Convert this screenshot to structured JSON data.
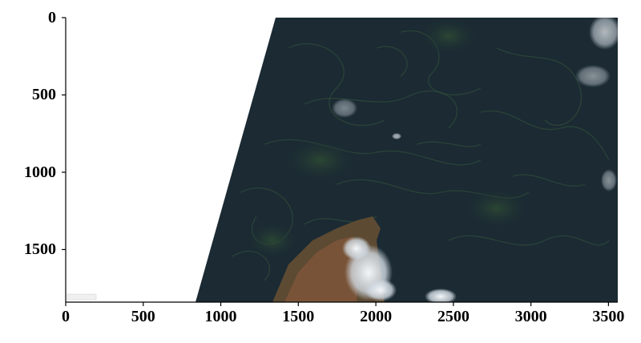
{
  "figure": {
    "type": "satellite-image-axes",
    "description_hidden": "",
    "x_ticks": [
      "0",
      "500",
      "1000",
      "1500",
      "2000",
      "2500",
      "3000",
      "3500"
    ],
    "y_ticks": [
      "0",
      "500",
      "1000",
      "1500"
    ],
    "x_range": [
      0,
      3560
    ],
    "y_range": [
      0,
      1840
    ],
    "watermark_text": "",
    "colors": {
      "ocean": "#1b2a33",
      "algae": "#2f4a2a",
      "cloud": "#e9eef3",
      "land": "#7a5a3a",
      "nodata": "#ffffff",
      "axis": "#000000"
    }
  }
}
